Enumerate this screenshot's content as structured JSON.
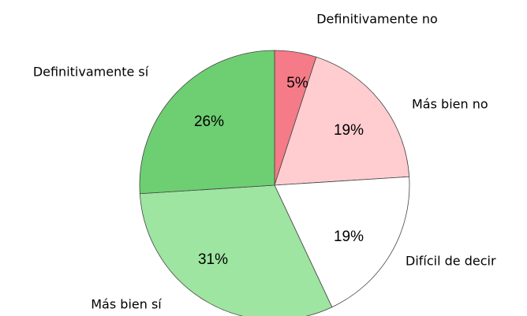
{
  "chart_data": {
    "type": "pie",
    "categories": [
      "Definitivamente no",
      "Más bien no",
      "Difícil de decir",
      "Más bien sí",
      "Definitivamente sí"
    ],
    "values": [
      5,
      19,
      19,
      31,
      26
    ],
    "value_labels": [
      "5%",
      "19%",
      "19%",
      "31%",
      "26%"
    ],
    "colors": [
      "#f47b87",
      "#ffcdd0",
      "#ffffff",
      "#9de5a0",
      "#6dcf72"
    ]
  }
}
